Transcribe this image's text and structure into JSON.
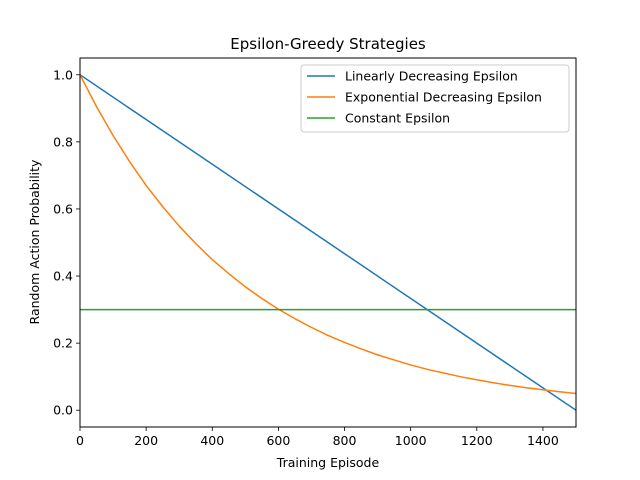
{
  "chart_data": {
    "type": "line",
    "title": "Epsilon-Greedy Strategies",
    "xlabel": "Training Episode",
    "ylabel": "Random Action Probability",
    "xlim": [
      0,
      1500
    ],
    "ylim": [
      -0.05,
      1.05
    ],
    "xticks": [
      0,
      200,
      400,
      600,
      800,
      1000,
      1200,
      1400
    ],
    "xtick_labels": [
      "0",
      "200",
      "400",
      "600",
      "800",
      "1000",
      "1200",
      "1400"
    ],
    "yticks": [
      0.0,
      0.2,
      0.4,
      0.6,
      0.8,
      1.0
    ],
    "ytick_labels": [
      "0.0",
      "0.2",
      "0.4",
      "0.6",
      "0.8",
      "1.0"
    ],
    "grid": false,
    "legend_position": "top-right",
    "series": [
      {
        "name": "Linearly Decreasing Epsilon",
        "color": "#1f77b4",
        "x": [
          0,
          1500
        ],
        "y": [
          1.0,
          0.0
        ]
      },
      {
        "name": "Exponential Decreasing Epsilon",
        "color": "#ff7f0e",
        "x": [
          0,
          50,
          100,
          150,
          200,
          250,
          300,
          350,
          400,
          450,
          500,
          550,
          600,
          650,
          700,
          750,
          800,
          850,
          900,
          950,
          1000,
          1050,
          1100,
          1150,
          1200,
          1250,
          1300,
          1350,
          1400,
          1450,
          1500
        ],
        "y": [
          1.0,
          0.905,
          0.819,
          0.741,
          0.67,
          0.607,
          0.549,
          0.497,
          0.449,
          0.407,
          0.368,
          0.333,
          0.301,
          0.273,
          0.247,
          0.223,
          0.202,
          0.183,
          0.165,
          0.15,
          0.135,
          0.122,
          0.111,
          0.1,
          0.091,
          0.082,
          0.074,
          0.067,
          0.061,
          0.055,
          0.05
        ]
      },
      {
        "name": "Constant Epsilon",
        "color": "#2ca02c",
        "x": [
          0,
          1500
        ],
        "y": [
          0.3,
          0.3
        ]
      }
    ]
  }
}
